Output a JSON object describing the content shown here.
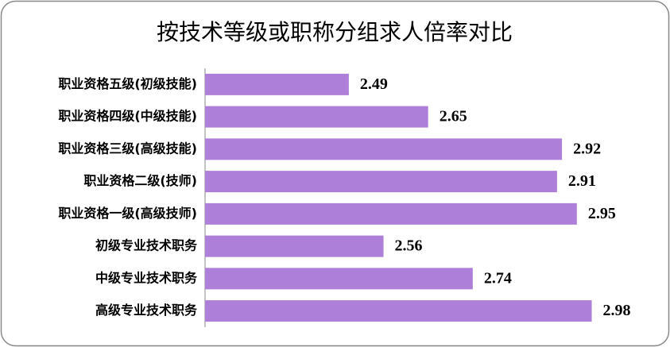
{
  "chart_data": {
    "type": "bar",
    "orientation": "horizontal",
    "title": "按技术等级或职称分组求人倍率对比",
    "categories": [
      "职业资格五级(初级技能)",
      "职业资格四级(中级技能)",
      "职业资格三级(高级技能)",
      "职业资格二级(技师)",
      "职业资格一级(高级技师)",
      "初级专业技术职务",
      "中级专业技术职务",
      "高级专业技术职务"
    ],
    "values": [
      2.49,
      2.65,
      2.92,
      2.91,
      2.95,
      2.56,
      2.74,
      2.98
    ],
    "color": "#ae7fd8",
    "xlim": [
      2.2,
      3.0
    ]
  }
}
